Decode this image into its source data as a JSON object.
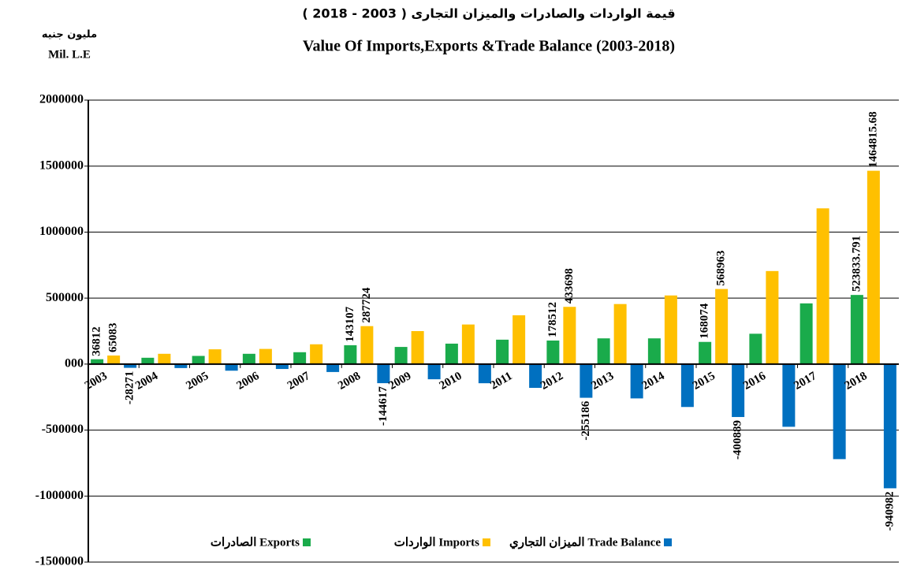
{
  "chart_data": {
    "type": "bar",
    "title": "قيمة الواردات والصادرات والميزان التجارى ( 2003 - 2018 )",
    "subtitle": "Value Of Imports,Exports &Trade Balance (2003-2018)",
    "y_label": "مليون جنيه",
    "y_label_en": "Mil. L.E",
    "categories": [
      "2003",
      "2004",
      "2005",
      "2006",
      "2007",
      "2008",
      "2009",
      "2010",
      "2011",
      "2012",
      "2013",
      "2014",
      "2015",
      "2016",
      "2017",
      "2018"
    ],
    "series": [
      {
        "name": "الصادرات Exports",
        "color": "#1aab4b",
        "values": [
          36812,
          48000,
          62000,
          78000,
          90000,
          143107,
          130000,
          155000,
          185000,
          178512,
          195000,
          195000,
          168074,
          230000,
          460000,
          523833.791
        ],
        "value_labels": [
          "36812",
          null,
          null,
          null,
          null,
          "143107",
          null,
          null,
          null,
          "178512",
          null,
          null,
          "168074",
          null,
          null,
          "523833.791"
        ]
      },
      {
        "name": "الواردات Imports",
        "color": "#ffc000",
        "values": [
          65083,
          78000,
          112000,
          115000,
          150000,
          287724,
          250000,
          300000,
          370000,
          433698,
          455000,
          520000,
          568963,
          705000,
          1180000,
          1464815.68
        ],
        "value_labels": [
          "65083",
          null,
          null,
          null,
          null,
          "287724",
          null,
          null,
          null,
          "433698",
          null,
          null,
          "568963",
          null,
          null,
          "1464815.68"
        ]
      },
      {
        "name": "الميزان التجاري Trade Balance",
        "color": "#0070c0",
        "values": [
          -28271,
          -30000,
          -50000,
          -37000,
          -60000,
          -144617,
          -115000,
          -145000,
          -180000,
          -255186,
          -260000,
          -325000,
          -400889,
          -475000,
          -720000,
          -940982
        ],
        "value_labels": [
          "-28271",
          null,
          null,
          null,
          null,
          "-144617",
          null,
          null,
          null,
          "-255186",
          null,
          null,
          "-400889",
          null,
          null,
          "-940982"
        ]
      }
    ],
    "ylim": [
      -1500000,
      2000000
    ],
    "yticks": [
      -1500000,
      -1000000,
      -500000,
      {
        "value": 0,
        "label": "000"
      },
      500000,
      1000000,
      1500000,
      2000000
    ],
    "grid": true
  }
}
